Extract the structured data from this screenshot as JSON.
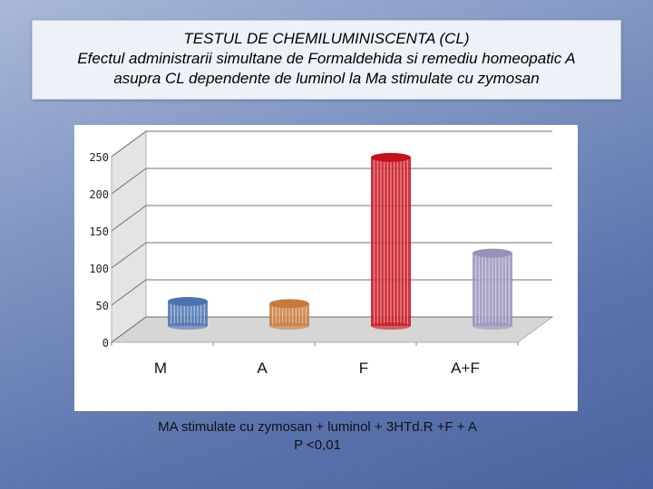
{
  "title": {
    "line1": "TESTUL DE CHEMILUMINISCENTA  (CL)",
    "line2": "Efectul administrarii  simultane de Formaldehida si remediu homeopatic A",
    "line3": "asupra CL dependente de luminol la Ma stimulate cu zymosan"
  },
  "footer": {
    "line1": "MA stimulate cu zymosan + luminol + 3HTd.R  +F + A",
    "line2": "P <0,01"
  },
  "chart_data": {
    "type": "bar",
    "categories": [
      "M",
      "A",
      "F",
      "A+F"
    ],
    "values": [
      33,
      30,
      227,
      98
    ],
    "colors": [
      "#4a72b0",
      "#c87a3a",
      "#c8101a",
      "#9a90bb"
    ],
    "ylim": [
      0,
      250
    ],
    "yticks": [
      0,
      50,
      100,
      150,
      200,
      250
    ],
    "grid": true
  }
}
